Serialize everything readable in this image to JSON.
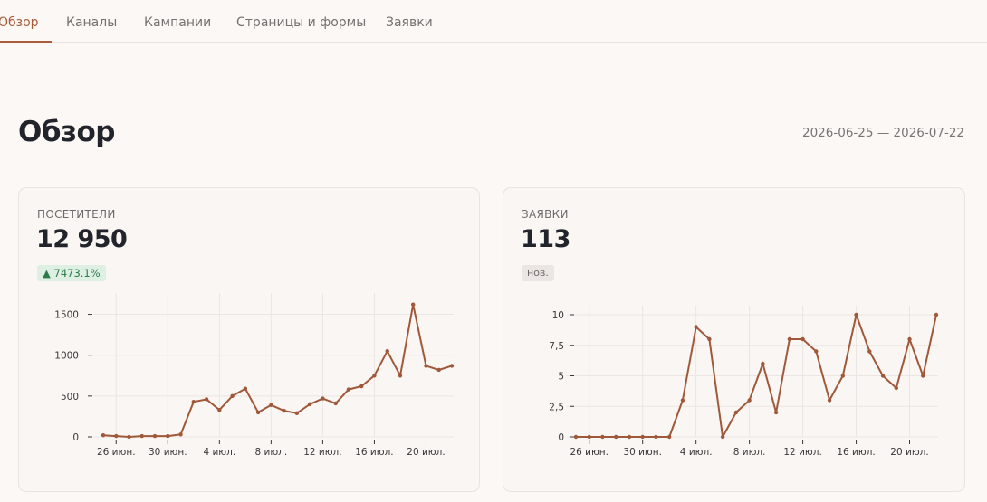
{
  "tabs": [
    {
      "label": "Обзор",
      "active": true
    },
    {
      "label": "Каналы",
      "active": false
    },
    {
      "label": "Кампании",
      "active": false
    },
    {
      "label": "Страницы и формы",
      "active": false
    },
    {
      "label": "Заявки",
      "active": false
    }
  ],
  "page": {
    "title": "Обзор",
    "date_range": "2026-06-25 — 2026-07-22"
  },
  "colors": {
    "accent": "#a85c3a",
    "line": "#a0583a",
    "badge_up_bg": "#deefe3",
    "badge_up_text": "#2d7a4b"
  },
  "cards": {
    "visitors": {
      "label": "ПОСЕТИТЕЛИ",
      "value": "12 950",
      "badge": "▲ 7473.1%"
    },
    "leads": {
      "label": "ЗАЯВКИ",
      "value": "113",
      "badge": "нов."
    }
  },
  "chart_data": [
    {
      "type": "line",
      "x": [
        "25 июн.",
        "26 июн.",
        "27 июн.",
        "28 июн.",
        "29 июн.",
        "30 июн.",
        "1 июл.",
        "2 июл.",
        "3 июл.",
        "4 июл.",
        "5 июл.",
        "6 июл.",
        "7 июл.",
        "8 июл.",
        "9 июл.",
        "10 июл.",
        "11 июл.",
        "12 июл.",
        "13 июл.",
        "14 июл.",
        "15 июл.",
        "16 июл.",
        "17 июл.",
        "18 июл.",
        "19 июл.",
        "20 июл.",
        "21 июл.",
        "22 июл."
      ],
      "series": [
        {
          "values": [
            20,
            10,
            0,
            10,
            10,
            10,
            30,
            430,
            460,
            330,
            500,
            590,
            300,
            390,
            320,
            290,
            400,
            470,
            410,
            580,
            620,
            750,
            1050,
            750,
            1620,
            870,
            820,
            870
          ]
        }
      ],
      "x_tick_labels": [
        "26 июн.",
        "30 июн.",
        "4 июл.",
        "8 июл.",
        "12 июл.",
        "16 июл.",
        "20 июл."
      ],
      "y_ticks": [
        "0",
        "500",
        "1000",
        "1500"
      ],
      "ylim": [
        0,
        1650
      ],
      "grid": true
    },
    {
      "type": "line",
      "x": [
        "25 июн.",
        "26 июн.",
        "27 июн.",
        "28 июн.",
        "29 июн.",
        "30 июн.",
        "1 июл.",
        "2 июл.",
        "3 июл.",
        "4 июл.",
        "5 июл.",
        "6 июл.",
        "7 июл.",
        "8 июл.",
        "9 июл.",
        "10 июл.",
        "11 июл.",
        "12 июл.",
        "13 июл.",
        "14 июл.",
        "15 июл.",
        "16 июл.",
        "17 июл.",
        "18 июл.",
        "19 июл.",
        "20 июл.",
        "21 июл.",
        "22 июл."
      ],
      "series": [
        {
          "values": [
            0,
            0,
            0,
            0,
            0,
            0,
            0,
            0,
            3,
            9,
            8,
            0,
            2,
            3,
            6,
            2,
            8,
            8,
            7,
            3,
            5,
            10,
            7,
            5,
            4,
            8,
            5,
            10
          ]
        }
      ],
      "x_tick_labels": [
        "26 июн.",
        "30 июн.",
        "4 июл.",
        "8 июл.",
        "12 июл.",
        "16 июл.",
        "20 июл."
      ],
      "y_ticks": [
        "0",
        "2,5",
        "5",
        "7,5",
        "10"
      ],
      "ylim": [
        0,
        10
      ],
      "grid": true
    }
  ]
}
